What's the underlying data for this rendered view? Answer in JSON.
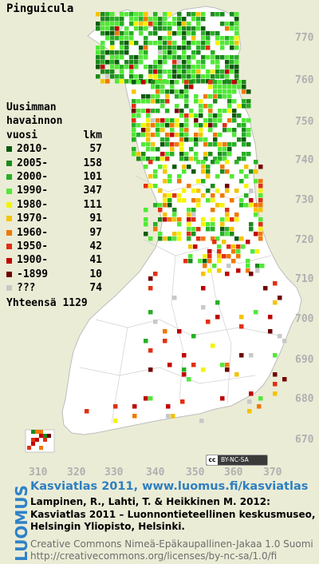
{
  "title": "Pinguicula",
  "legend": {
    "header_line1": "Uusimman",
    "header_line2": "havainnon",
    "header_line3": "vuosi",
    "header_count_label": "lkm",
    "rows": [
      {
        "label": "2010-",
        "count": "57",
        "color": "#0c5a0c"
      },
      {
        "label": "2005-",
        "count": "158",
        "color": "#1c8a1c"
      },
      {
        "label": "2000-",
        "count": "101",
        "color": "#27b026"
      },
      {
        "label": "1990-",
        "count": "347",
        "color": "#52e838"
      },
      {
        "label": "1980-",
        "count": "111",
        "color": "#f4f400"
      },
      {
        "label": "1970-",
        "count": "91",
        "color": "#f4c400"
      },
      {
        "label": "1960-",
        "count": "97",
        "color": "#f07800"
      },
      {
        "label": "1950-",
        "count": "42",
        "color": "#e03010"
      },
      {
        "label": "1900-",
        "count": "41",
        "color": "#c00000"
      },
      {
        "label": "-1899",
        "count": "10",
        "color": "#700000"
      },
      {
        "label": "???",
        "count": "74",
        "color": "#c8c8c8"
      }
    ],
    "total_label": "Yhteensä",
    "total_count": "1129"
  },
  "y_axis_labels": [
    "770",
    "760",
    "750",
    "740",
    "730",
    "720",
    "710",
    "700",
    "690",
    "680",
    "670"
  ],
  "x_axis_labels": [
    "310",
    "320",
    "330",
    "340",
    "350",
    "360",
    "370"
  ],
  "license_badge": {
    "cc": "cc",
    "text": "BY-NC-SA"
  },
  "brand": "LUOMUS",
  "credits": {
    "heading": "Kasviatlas 2011, www.luomus.fi/kasviatlas",
    "ref_line1": "Lampinen, R., Lahti, T. & Heikkinen M. 2012:",
    "ref_line2": "Kasviatlas 2011 – Luonnontieteellinen keskusmuseo,",
    "ref_line3": "Helsingin Yliopisto, Helsinki.",
    "license_line1": "Creative Commons Nimeä-Epäkaupallinen-Jakaa 1.0 Suomi",
    "license_line2": "http://creativecommons.org/licenses/by-nc-sa/1.0/fi"
  },
  "colors": {
    "background": "#ebecd6",
    "land": "#ffffff",
    "border": "#c9c9c9",
    "brand_blue": "#2e82c7"
  }
}
